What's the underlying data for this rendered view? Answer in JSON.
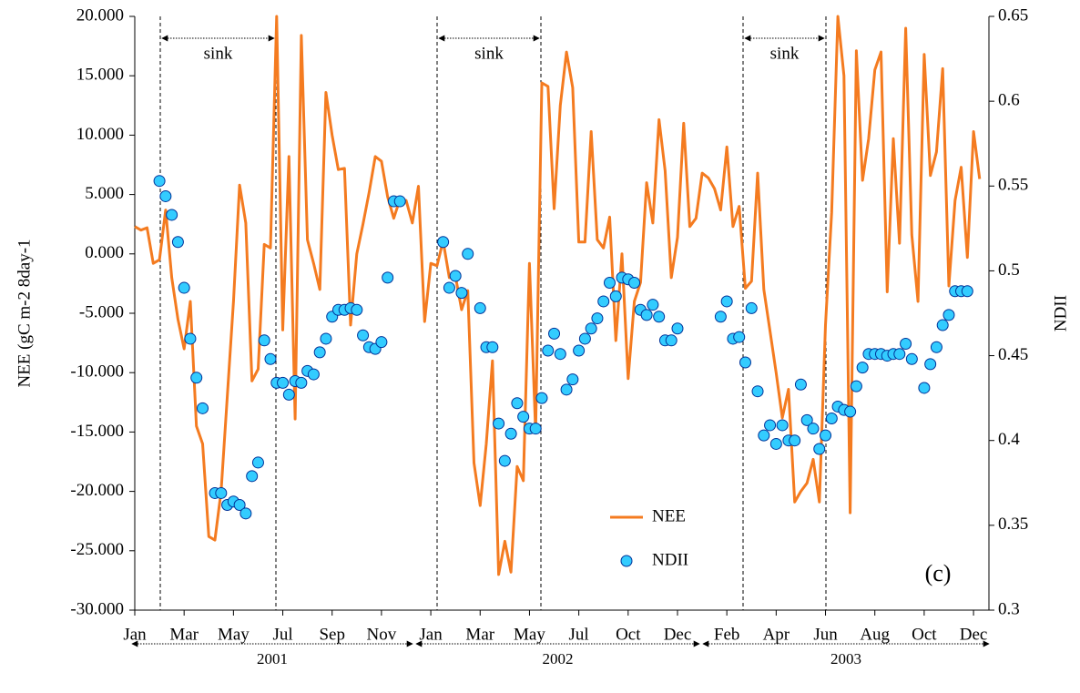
{
  "chart_data": {
    "type": "line",
    "y_label": "NEE (gC m-2 8day-1",
    "y2_label": "NDII",
    "categories": [
      "Jan",
      null,
      null,
      null,
      null,
      null,
      null,
      null,
      "Mar",
      null,
      null,
      null,
      null,
      null,
      null,
      null,
      "May",
      null,
      null,
      null,
      null,
      null,
      null,
      null,
      "Jul",
      null,
      null,
      null,
      null,
      null,
      null,
      null,
      "Sep",
      null,
      null,
      null,
      null,
      null,
      null,
      null,
      "Nov",
      null,
      null,
      null,
      null,
      null,
      null,
      null,
      "Jan",
      null,
      null,
      null,
      null,
      null,
      null,
      null,
      "Mar",
      null,
      null,
      null,
      null,
      null,
      null,
      null,
      "May",
      null,
      null,
      null,
      null,
      null,
      null,
      null,
      "Jul",
      null,
      null,
      null,
      null,
      null,
      null,
      null,
      "Oct",
      null,
      null,
      null,
      null,
      null,
      null,
      null,
      "Dec",
      null,
      null,
      null,
      null,
      null,
      null,
      null,
      "Feb",
      null,
      null,
      null,
      null,
      null,
      null,
      null,
      "Apr",
      null,
      null,
      null,
      null,
      null,
      null,
      null,
      "Jun",
      null,
      null,
      null,
      null,
      null,
      null,
      null,
      "Aug",
      null,
      null,
      null,
      null,
      null,
      null,
      null,
      "Oct",
      null,
      null,
      null,
      null,
      null,
      null,
      null,
      "Dec",
      null
    ],
    "year_labels": [
      "2001",
      "2002",
      "2003"
    ],
    "annotations": [
      "sink",
      "sink",
      "sink",
      "(c)"
    ],
    "series": [
      {
        "name": "NEE",
        "type": "line",
        "color": "#f47b20",
        "values": [
          2.3,
          2.0,
          2.2,
          -0.8,
          -0.5,
          3.7,
          -2,
          -5.5,
          -8,
          -4,
          -14.5,
          -16,
          -23.8,
          -24.1,
          -20,
          -12,
          -4,
          5.8,
          2.6,
          -10.7,
          -9.7,
          0.8,
          0.5,
          20,
          -6.4,
          8.2,
          -13.9,
          18.4,
          1.2,
          -0.8,
          -3,
          13.6,
          10,
          7.1,
          7.2,
          -6,
          0,
          2.5,
          5.2,
          8.2,
          7.8,
          4.8,
          3,
          4.6,
          4.5,
          2.6,
          5.7,
          -5.7,
          -0.8,
          -1,
          1.1,
          -2,
          -1.9,
          -4.7,
          -3.1,
          -17.6,
          -21.2,
          -16,
          -9,
          -27,
          -24.2,
          -26.8,
          -17.9,
          -19.1,
          -0.8,
          -15,
          14.4,
          14.1,
          3.8,
          12.5,
          17,
          14,
          1,
          1,
          10.3,
          1.2,
          0.5,
          3.1,
          -7.3,
          0,
          -10.5,
          -4,
          -2.4,
          6,
          2.6,
          11.3,
          7,
          -2,
          1.4,
          11,
          2.3,
          3,
          6.8,
          6.4,
          5.5,
          3.7,
          9,
          2.3,
          4,
          -2.9,
          -2.3,
          6.8,
          -3,
          -6.5,
          -10,
          -13.8,
          -11.4,
          -20.9,
          -20,
          -19.3,
          -17.3,
          -20.9,
          -6,
          3.5,
          20,
          15,
          -21.8,
          17.1,
          6.2,
          9.7,
          15.5,
          17,
          -3.2,
          9.7,
          0.9,
          19,
          1.6,
          -4,
          16.8,
          6.6,
          8.6,
          15.6,
          -2.7,
          4.5,
          7.3,
          -0.3,
          10.3,
          6.3
        ]
      },
      {
        "name": "NDII",
        "type": "scatter",
        "axis": "y2",
        "color": "#33ccff",
        "values": [
          null,
          null,
          null,
          null,
          0.553,
          0.544,
          0.533,
          0.517,
          0.49,
          0.46,
          0.437,
          0.419,
          null,
          0.369,
          0.369,
          0.362,
          0.364,
          0.362,
          0.357,
          0.379,
          0.387,
          0.459,
          0.448,
          0.434,
          0.434,
          0.427,
          0.435,
          0.434,
          0.441,
          0.439,
          0.452,
          0.46,
          0.473,
          0.477,
          0.477,
          0.478,
          0.477,
          0.462,
          0.455,
          0.454,
          0.458,
          0.496,
          0.541,
          0.541,
          null,
          null,
          null,
          null,
          null,
          null,
          0.517,
          0.49,
          0.497,
          0.487,
          0.51,
          null,
          0.478,
          0.455,
          0.455,
          0.41,
          0.388,
          0.404,
          0.422,
          0.414,
          0.407,
          0.407,
          0.425,
          0.453,
          0.463,
          0.451,
          0.43,
          0.436,
          0.453,
          0.46,
          0.466,
          0.472,
          0.482,
          0.493,
          0.485,
          0.496,
          0.495,
          0.493,
          0.477,
          0.474,
          0.48,
          0.473,
          0.459,
          0.459,
          0.466,
          null,
          null,
          null,
          null,
          null,
          null,
          0.473,
          0.482,
          0.46,
          0.461,
          0.446,
          0.478,
          0.429,
          0.403,
          0.409,
          0.398,
          0.409,
          0.4,
          0.4,
          0.433,
          0.412,
          0.407,
          0.395,
          0.403,
          0.413,
          0.42,
          0.418,
          0.417,
          0.432,
          0.443,
          0.451,
          0.451,
          0.451,
          0.45,
          0.451,
          0.451,
          0.457,
          0.448,
          null,
          0.431,
          0.445,
          0.455,
          0.468,
          0.474,
          0.488,
          0.488,
          0.488,
          null,
          null
        ]
      }
    ],
    "ylim": [
      -30,
      20
    ],
    "yticks": [
      {
        "value": -30,
        "label": "-30.000"
      },
      {
        "value": -25,
        "label": "-25.000"
      },
      {
        "value": -20,
        "label": "-20.000"
      },
      {
        "value": -15,
        "label": "-15.000"
      },
      {
        "value": -10,
        "label": "-10.000"
      },
      {
        "value": -5,
        "label": "-5.000"
      },
      {
        "value": 0,
        "label": "0.000"
      },
      {
        "value": 5,
        "label": "5.000"
      },
      {
        "value": 10,
        "label": "10.000"
      },
      {
        "value": 15,
        "label": "15.000"
      },
      {
        "value": 20,
        "label": "20.000"
      }
    ],
    "y2lim": [
      0.3,
      0.65
    ],
    "y2ticks": [
      0.3,
      0.35,
      0.4,
      0.45,
      0.5,
      0.55,
      0.6,
      0.65
    ],
    "grid": false,
    "legend": "bottom"
  }
}
